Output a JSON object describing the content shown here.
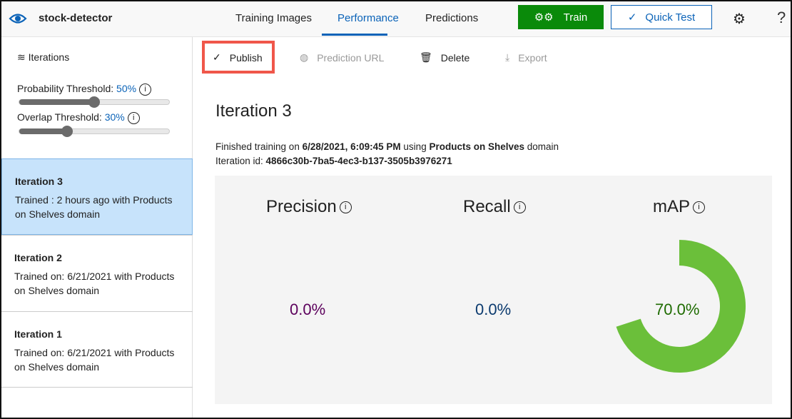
{
  "header": {
    "project_name": "stock-detector",
    "tabs": [
      {
        "label": "Training Images"
      },
      {
        "label": "Performance",
        "active": true
      },
      {
        "label": "Predictions"
      }
    ],
    "train_label": "Train",
    "quick_test_label": "Quick Test",
    "help_label": "?"
  },
  "sidebar": {
    "title": "Iterations",
    "probability": {
      "label": "Probability Threshold:",
      "value": "50%",
      "level": 50
    },
    "overlap": {
      "label": "Overlap Threshold:",
      "value": "30%",
      "level": 30
    },
    "iterations": [
      {
        "name": "Iteration 3",
        "desc": "Trained : 2 hours ago with Products on Shelves domain",
        "selected": true
      },
      {
        "name": "Iteration 2",
        "desc": "Trained on: 6/21/2021 with Products on Shelves domain"
      },
      {
        "name": "Iteration 1",
        "desc": "Trained on: 6/21/2021 with Products on Shelves domain"
      }
    ]
  },
  "toolbar": {
    "publish": "Publish",
    "prediction_url": "Prediction URL",
    "delete": "Delete",
    "export": "Export"
  },
  "main": {
    "title": "Iteration 3",
    "finished_prefix": "Finished training on ",
    "finished_date": "6/28/2021, 6:09:45 PM",
    "using": " using ",
    "domain": "Products on Shelves",
    "domain_suffix": " domain",
    "id_label": "Iteration id: ",
    "id_value": "4866c30b-7ba5-4ec3-b137-3505b3976271",
    "metrics": {
      "precision": {
        "label": "Precision",
        "value": "0.0%",
        "color": "#5c005c"
      },
      "recall": {
        "label": "Recall",
        "value": "0.0%",
        "color": "#0b3a6e"
      },
      "map": {
        "label": "mAP",
        "value": "70.0%",
        "fraction": 0.7,
        "color": "#6bbf3a",
        "text_color": "#1e6b00"
      }
    }
  },
  "colors": {
    "accent": "#0b63b8",
    "train": "#0a8a0a",
    "highlight": "#f0574a"
  }
}
